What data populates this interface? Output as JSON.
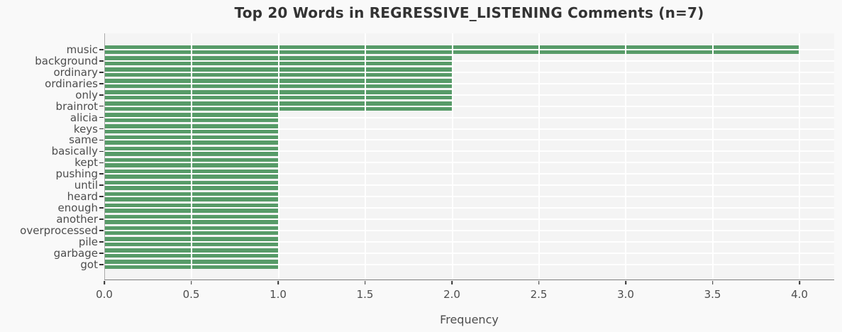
{
  "chart_data": {
    "type": "bar",
    "orientation": "horizontal",
    "title": "Top 20 Words in REGRESSIVE_LISTENING Comments (n=7)",
    "xlabel": "Frequency",
    "ylabel": "",
    "categories": [
      "music",
      "background",
      "ordinary",
      "ordinaries",
      "only",
      "brainrot",
      "alicia",
      "keys",
      "same",
      "basically",
      "kept",
      "pushing",
      "until",
      "heard",
      "enough",
      "another",
      "overprocessed",
      "pile",
      "garbage",
      "got"
    ],
    "values": [
      4,
      2,
      2,
      2,
      2,
      2,
      1,
      1,
      1,
      1,
      1,
      1,
      1,
      1,
      1,
      1,
      1,
      1,
      1,
      1
    ],
    "xlim": [
      0,
      4.2
    ],
    "xticks": [
      0.0,
      0.5,
      1.0,
      1.5,
      2.0,
      2.5,
      3.0,
      3.5,
      4.0
    ],
    "xtick_labels": [
      "0.0",
      "0.5",
      "1.0",
      "1.5",
      "2.0",
      "2.5",
      "3.0",
      "3.5",
      "4.0"
    ],
    "grid": "white gridlines drawn on top of bars, horizontal at every category and vertical at every 0.5",
    "legend": "none",
    "colors": {
      "bar": "#579b68",
      "plot_background": "#f4f4f4",
      "figure_background": "#f9f9f9",
      "gridline": "#ffffff",
      "title_text": "#333333",
      "tick_text": "#4d4d4d",
      "tick_mark": "#333333",
      "spine_left": "#ababab",
      "spine_bottom": "#7d7d7d"
    }
  }
}
